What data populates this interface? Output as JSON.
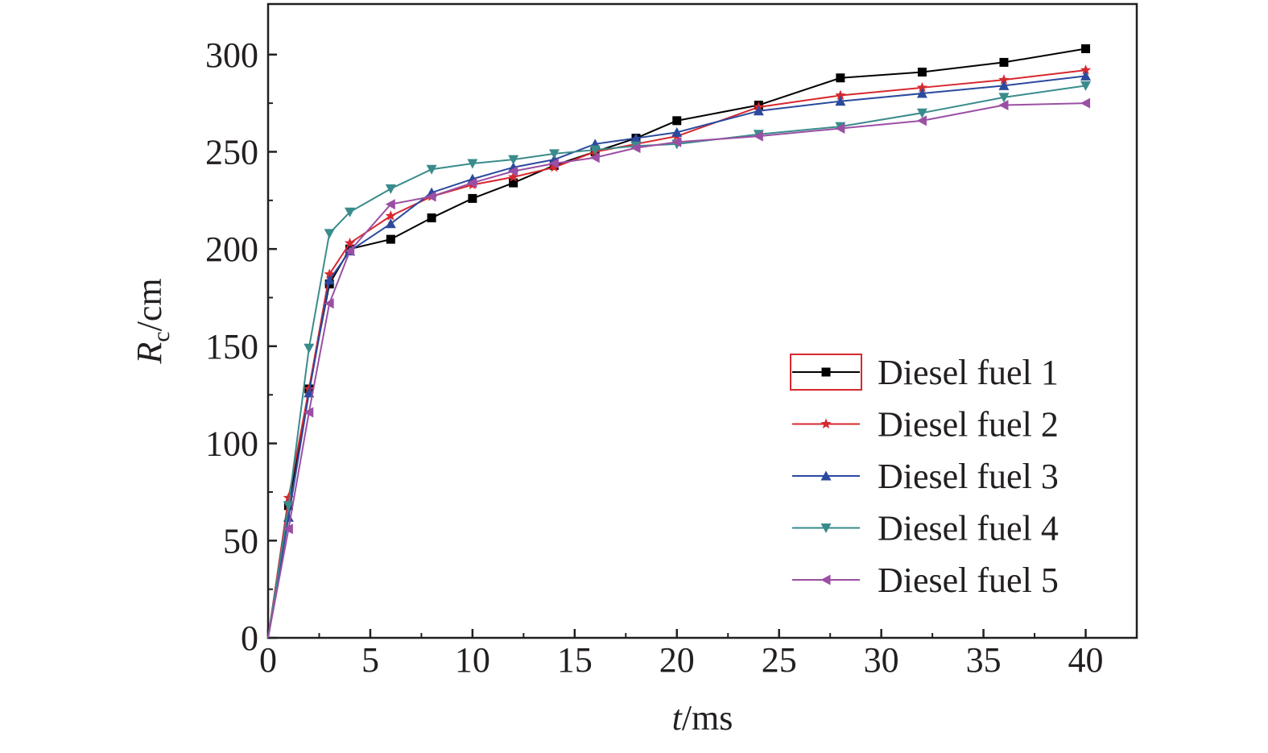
{
  "chart_data": {
    "type": "line",
    "xlabel": {
      "italic": "t",
      "rest": "/ms"
    },
    "ylabel": {
      "italic": "R",
      "sub": "c",
      "rest": "/cm"
    },
    "xlim": [
      0,
      42.5
    ],
    "ylim": [
      0,
      326
    ],
    "xticks": [
      "0",
      "5",
      "10",
      "15",
      "20",
      "25",
      "30",
      "35",
      "40"
    ],
    "yticks": [
      "0",
      "50",
      "100",
      "150",
      "200",
      "250",
      "300"
    ],
    "grid": false,
    "legend_position": "bottom-right",
    "series": [
      {
        "name": "Diesel fuel 1",
        "color": "#000000",
        "marker": "square",
        "x": [
          0,
          1,
          2,
          3,
          4,
          6,
          8,
          10,
          12,
          14,
          16,
          18,
          20,
          24,
          28,
          32,
          36,
          40
        ],
        "y": [
          0,
          68,
          128,
          182,
          200,
          205,
          216,
          226,
          234,
          243,
          250,
          257,
          266,
          274,
          288,
          291,
          296,
          303
        ]
      },
      {
        "name": "Diesel fuel 2",
        "color": "#d7282f",
        "marker": "star",
        "x": [
          0,
          1,
          2,
          3,
          4,
          6,
          8,
          10,
          12,
          14,
          16,
          18,
          20,
          24,
          28,
          32,
          36,
          40
        ],
        "y": [
          0,
          72,
          128,
          187,
          203,
          217,
          227,
          233,
          237,
          242,
          250,
          254,
          258,
          273,
          279,
          283,
          287,
          292
        ]
      },
      {
        "name": "Diesel fuel 3",
        "color": "#2b4a9e",
        "marker": "triangle-up",
        "x": [
          0,
          1,
          2,
          3,
          4,
          6,
          8,
          10,
          12,
          14,
          16,
          18,
          20,
          24,
          28,
          32,
          36,
          40
        ],
        "y": [
          0,
          62,
          126,
          184,
          199,
          213,
          229,
          236,
          242,
          246,
          254,
          257,
          260,
          271,
          276,
          280,
          284,
          289
        ]
      },
      {
        "name": "Diesel fuel 4",
        "color": "#3a8b8b",
        "marker": "triangle-down",
        "x": [
          0,
          1,
          2,
          3,
          4,
          6,
          8,
          10,
          12,
          14,
          16,
          18,
          20,
          24,
          28,
          32,
          36,
          40
        ],
        "y": [
          0,
          68,
          149,
          208,
          219,
          231,
          241,
          244,
          246,
          249,
          251,
          253,
          254,
          259,
          263,
          270,
          278,
          284
        ]
      },
      {
        "name": "Diesel fuel 5",
        "color": "#9b4fa4",
        "marker": "triangle-left",
        "x": [
          0,
          1,
          2,
          3,
          4,
          6,
          8,
          10,
          12,
          14,
          16,
          18,
          20,
          24,
          28,
          32,
          36,
          40
        ],
        "y": [
          0,
          56,
          116,
          172,
          199,
          223,
          227,
          234,
          240,
          244,
          247,
          252,
          255,
          258,
          262,
          266,
          274,
          275
        ]
      }
    ]
  }
}
